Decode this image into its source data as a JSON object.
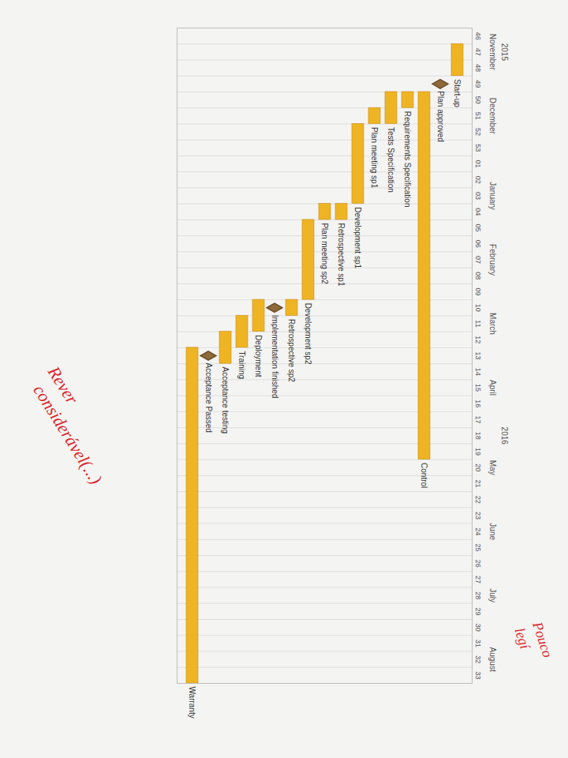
{
  "chart_data": {
    "type": "gantt",
    "categories": [
      "46",
      "47",
      "48",
      "49",
      "50",
      "51",
      "52",
      "53",
      "01",
      "02",
      "03",
      "04",
      "05",
      "06",
      "07",
      "08",
      "09",
      "10",
      "11",
      "12",
      "13",
      "14",
      "15",
      "16",
      "17",
      "18",
      "19",
      "20",
      "21",
      "22",
      "23",
      "24",
      "25",
      "26",
      "27",
      "28",
      "29",
      "30",
      "31",
      "32",
      "33"
    ],
    "years": [
      {
        "label": "2015",
        "week": "47"
      },
      {
        "label": "2016",
        "week": "18"
      }
    ],
    "months": [
      {
        "label": "November",
        "week": "47"
      },
      {
        "label": "December",
        "week": "51"
      },
      {
        "label": "January",
        "week": "03"
      },
      {
        "label": "February",
        "week": "07"
      },
      {
        "label": "March",
        "week": "11"
      },
      {
        "label": "April",
        "week": "15"
      },
      {
        "label": "May",
        "week": "20"
      },
      {
        "label": "June",
        "week": "24"
      },
      {
        "label": "July",
        "week": "28"
      },
      {
        "label": "August",
        "week": "32"
      }
    ],
    "tasks": [
      {
        "name": "Start-up",
        "type": "bar",
        "start": "47",
        "end": "48"
      },
      {
        "name": "Plan approved",
        "type": "milestone",
        "start": "49",
        "end": "49"
      },
      {
        "name": "Control",
        "type": "bar",
        "start": "50",
        "end": "19"
      },
      {
        "name": "Requirements Specification",
        "type": "bar",
        "start": "50",
        "end": "50"
      },
      {
        "name": "Tests Specification",
        "type": "bar",
        "start": "50",
        "end": "51"
      },
      {
        "name": "Plan meeting sp1",
        "type": "bar",
        "start": "51",
        "end": "51"
      },
      {
        "name": "Development sp1",
        "type": "bar",
        "start": "52",
        "end": "03"
      },
      {
        "name": "Retrospective sp1",
        "type": "bar",
        "start": "04",
        "end": "04"
      },
      {
        "name": "Plan meeting sp2",
        "type": "bar",
        "start": "04",
        "end": "04"
      },
      {
        "name": "Development sp2",
        "type": "bar",
        "start": "05",
        "end": "09"
      },
      {
        "name": "Retrospective sp2",
        "type": "bar",
        "start": "10",
        "end": "10"
      },
      {
        "name": "Implementation finished",
        "type": "milestone",
        "start": "10",
        "end": "10"
      },
      {
        "name": "Deployment",
        "type": "bar",
        "start": "10",
        "end": "11"
      },
      {
        "name": "Training",
        "type": "bar",
        "start": "11",
        "end": "12"
      },
      {
        "name": "Acceptance testing",
        "type": "bar",
        "start": "12",
        "end": "13"
      },
      {
        "name": "Acceptance Passed",
        "type": "milestone",
        "start": "13",
        "end": "13"
      },
      {
        "name": "Warranty",
        "type": "bar",
        "start": "13",
        "end": "33"
      }
    ],
    "color": "#efb424",
    "grid": true,
    "tick_labels": "x",
    "annotations": [
      "Rever considerável(...)",
      "Pouco legí"
    ]
  }
}
